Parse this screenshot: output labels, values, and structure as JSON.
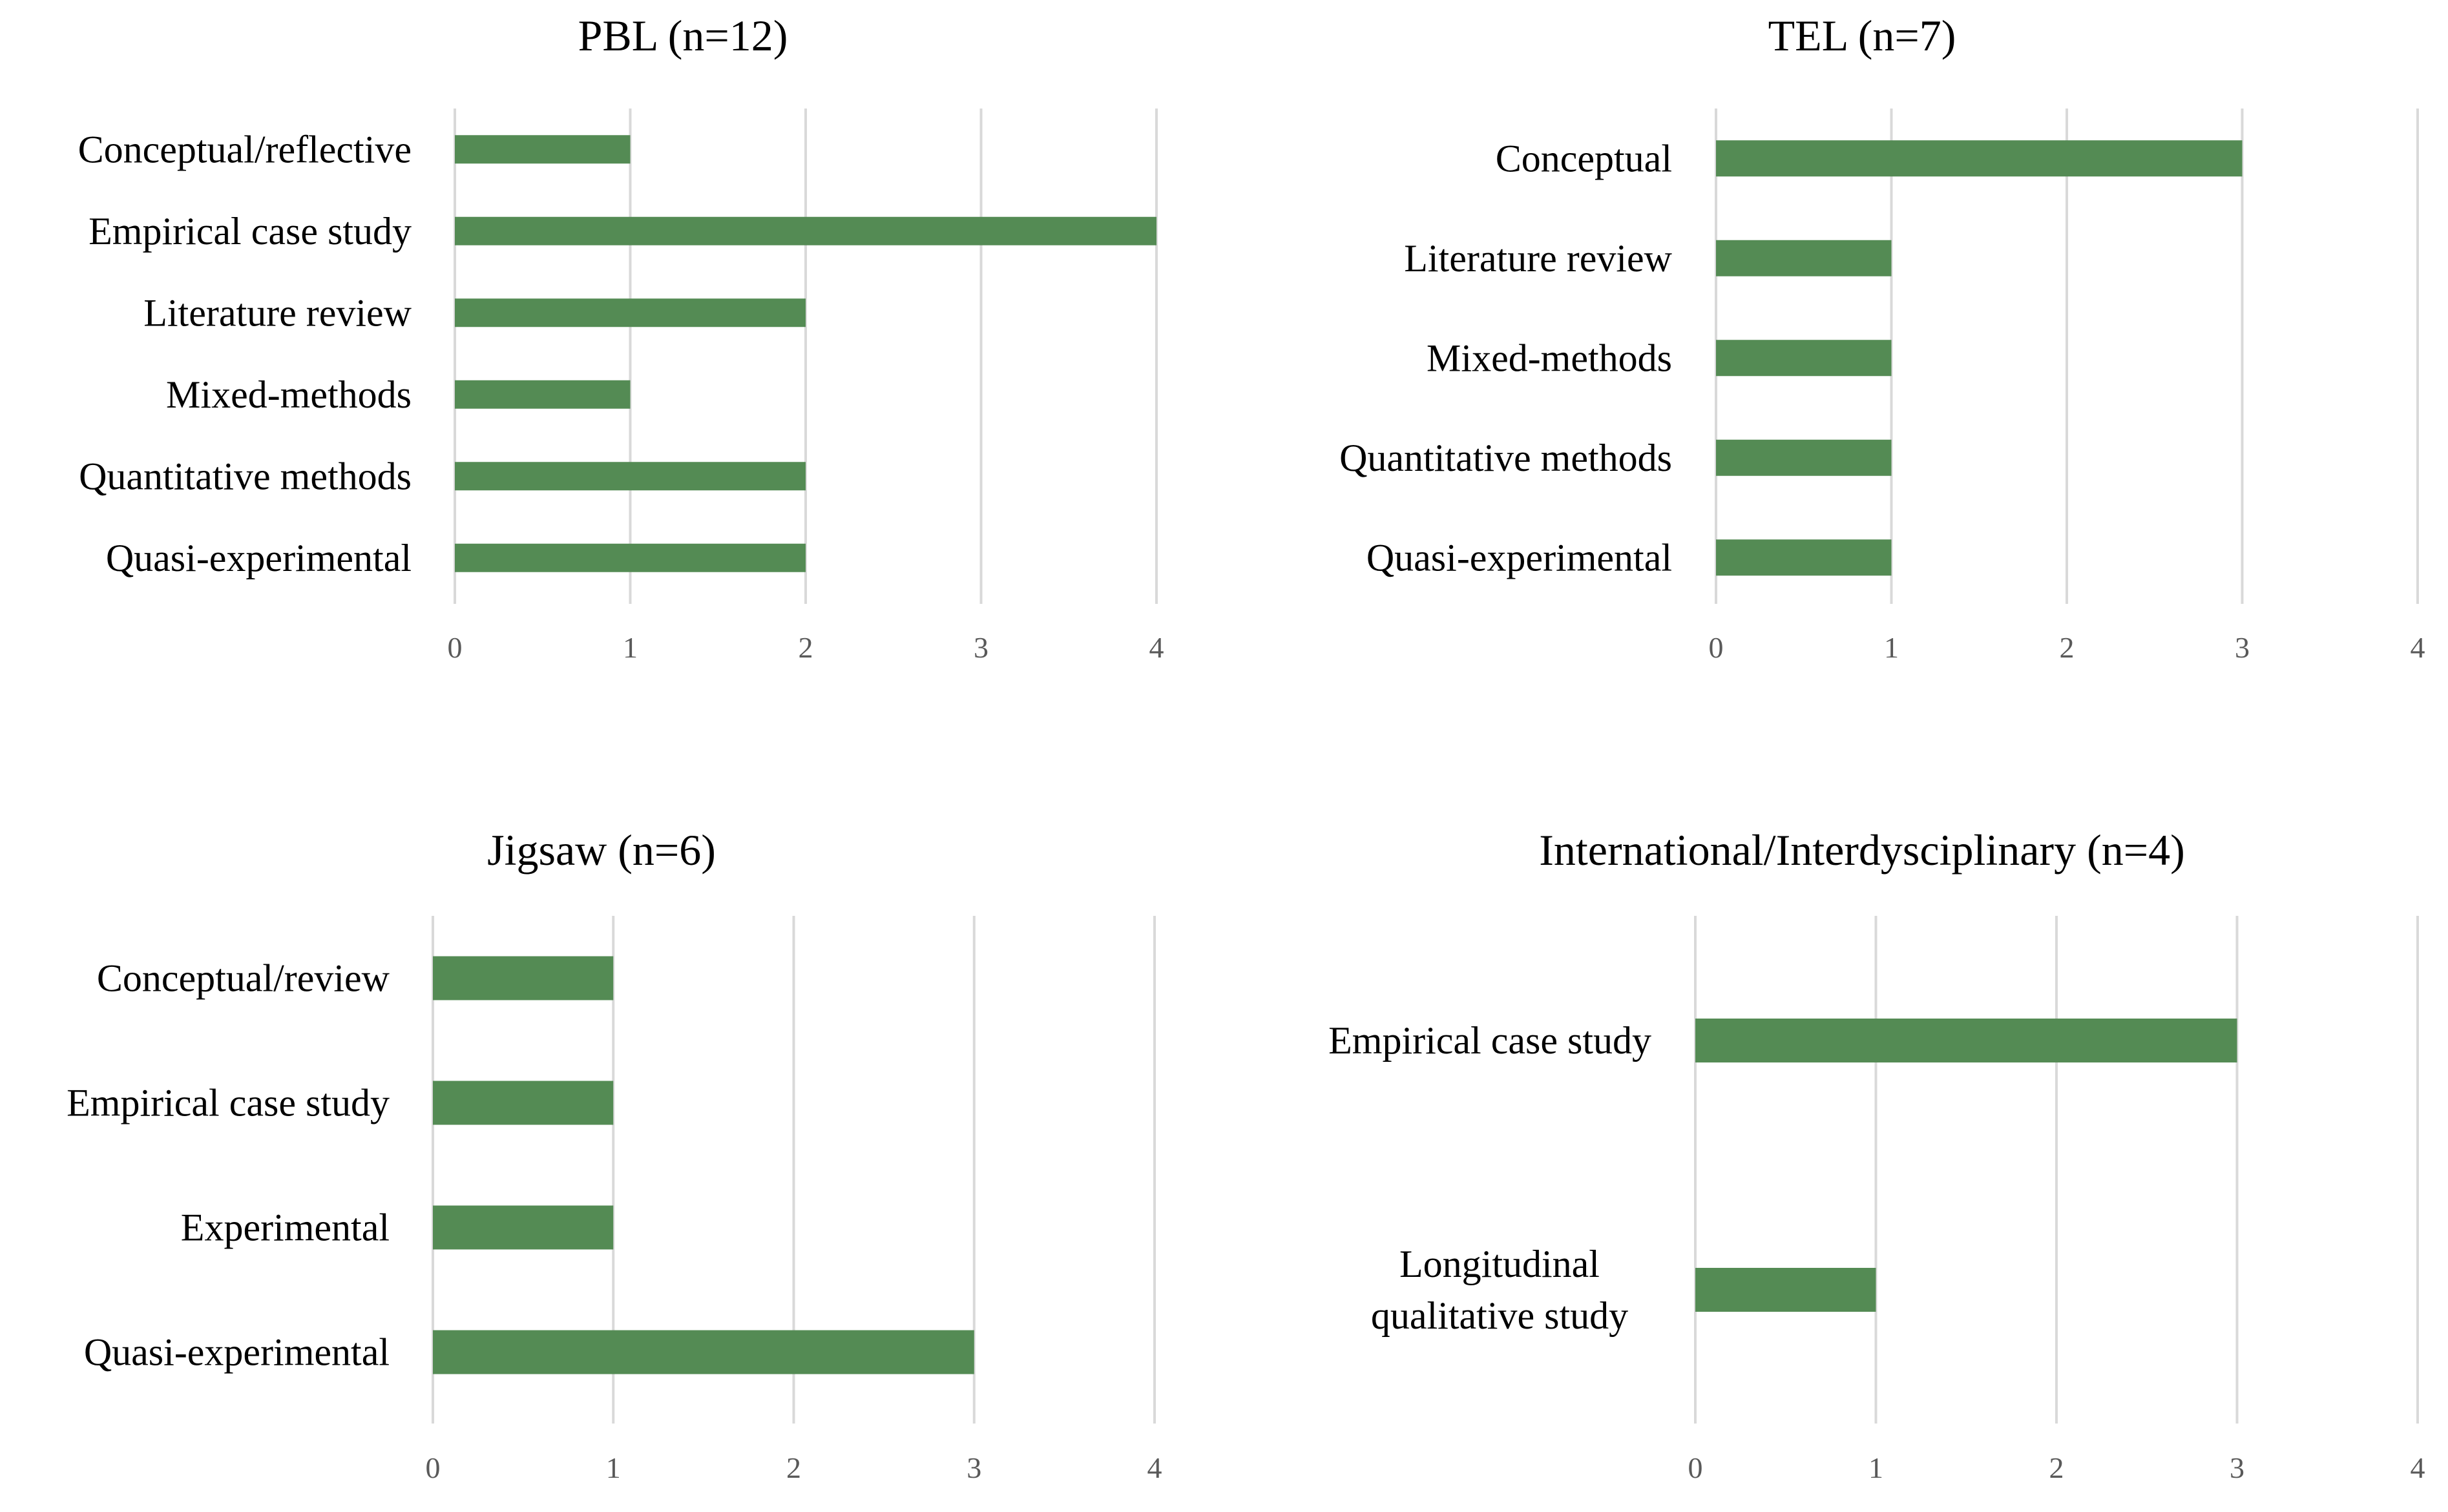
{
  "chart_data": [
    {
      "type": "bar",
      "orientation": "horizontal",
      "title": "PBL (n=12)",
      "categories": [
        "Conceptual/reflective",
        "Empirical case study",
        "Literature review",
        "Mixed-methods",
        "Quantitative methods",
        "Quasi-experimental"
      ],
      "values": [
        1,
        4,
        2,
        1,
        2,
        2
      ],
      "xlim": [
        0,
        4
      ],
      "xticks": [
        "0",
        "1",
        "2",
        "3",
        "4"
      ],
      "grid": true,
      "color": "#548b54"
    },
    {
      "type": "bar",
      "orientation": "horizontal",
      "title": "TEL (n=7)",
      "categories": [
        "Conceptual",
        "Literature review",
        "Mixed-methods",
        "Quantitative methods",
        "Quasi-experimental"
      ],
      "values": [
        3,
        1,
        1,
        1,
        1
      ],
      "xlim": [
        0,
        4
      ],
      "xticks": [
        "0",
        "1",
        "2",
        "3",
        "4"
      ],
      "grid": true,
      "color": "#548b54"
    },
    {
      "type": "bar",
      "orientation": "horizontal",
      "title": "Jigsaw (n=6)",
      "categories": [
        "Conceptual/review",
        "Empirical case study",
        "Experimental",
        "Quasi-experimental"
      ],
      "values": [
        1,
        1,
        1,
        3
      ],
      "xlim": [
        0,
        4
      ],
      "xticks": [
        "0",
        "1",
        "2",
        "3",
        "4"
      ],
      "grid": true,
      "color": "#548b54"
    },
    {
      "type": "bar",
      "orientation": "horizontal",
      "title": "International/Interdysciplinary (n=4)",
      "categories": [
        "Empirical case study",
        "Longitudinal qualitative study"
      ],
      "category_lines": [
        [
          "Empirical case study"
        ],
        [
          "Longitudinal",
          "qualitative study"
        ]
      ],
      "values": [
        3,
        1
      ],
      "xlim": [
        0,
        4
      ],
      "xticks": [
        "0",
        "1",
        "2",
        "3",
        "4"
      ],
      "grid": true,
      "color": "#548b54"
    }
  ]
}
